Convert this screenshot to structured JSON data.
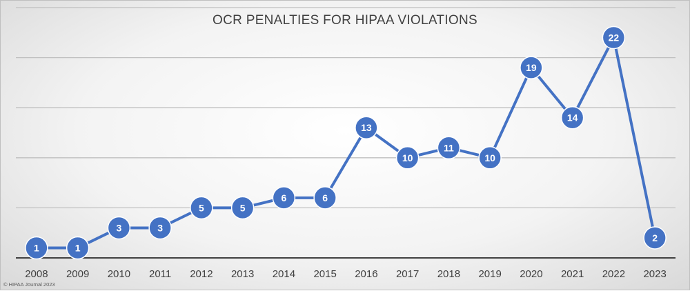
{
  "chart_data": {
    "type": "line",
    "title": "OCR PENALTIES FOR HIPAA VIOLATIONS",
    "xlabel": "",
    "ylabel": "",
    "categories": [
      "2008",
      "2009",
      "2010",
      "2011",
      "2012",
      "2013",
      "2014",
      "2015",
      "2016",
      "2017",
      "2018",
      "2019",
      "2020",
      "2021",
      "2022",
      "2023"
    ],
    "series": [
      {
        "values": [
          1,
          1,
          3,
          3,
          5,
          5,
          6,
          6,
          13,
          10,
          11,
          10,
          19,
          14,
          22,
          2
        ]
      }
    ],
    "ylim": [
      0,
      25
    ],
    "gridlines": [
      0,
      5,
      10,
      15,
      20,
      25
    ],
    "y_ticks_shown": false,
    "grid": true,
    "legend": "none",
    "data_labels": true,
    "colors": {
      "series": "#4472c4",
      "grid": "#bfbfbf",
      "axis": "#404040"
    }
  },
  "credit": "© HIPAA Journal 2023"
}
